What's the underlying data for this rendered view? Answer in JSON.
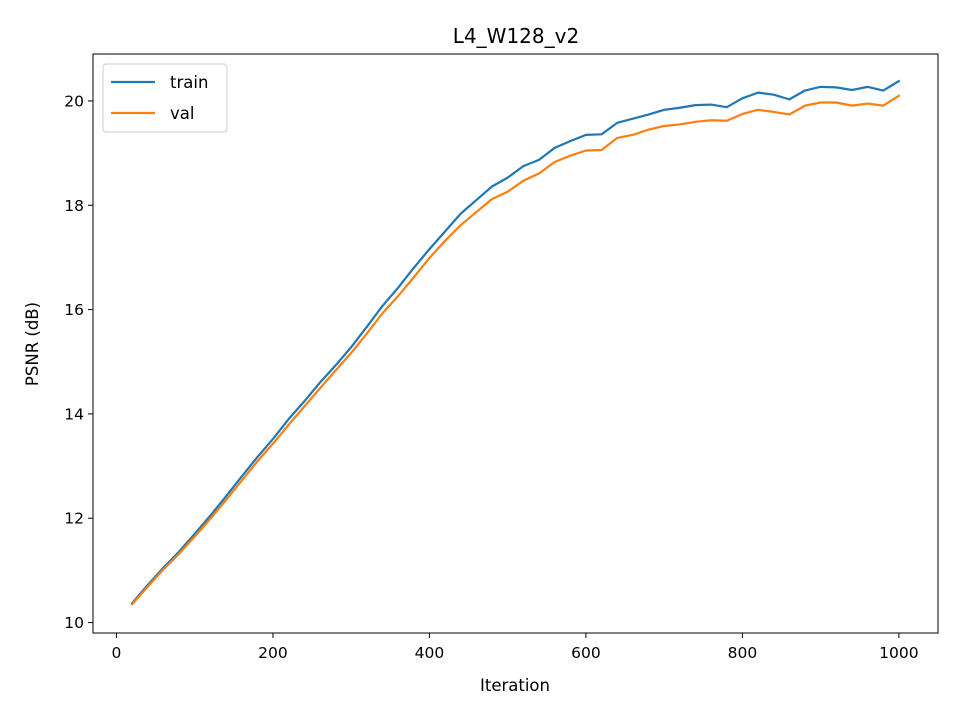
{
  "chart_data": {
    "type": "line",
    "title": "L4_W128_v2",
    "xlabel": "Iteration",
    "ylabel": "PSNR (dB)",
    "xlim": [
      -30,
      1050
    ],
    "ylim": [
      9.8,
      20.9
    ],
    "xticks": [
      0,
      200,
      400,
      600,
      800,
      1000
    ],
    "yticks": [
      10,
      12,
      14,
      16,
      18,
      20
    ],
    "grid": false,
    "legend_position": "top-left",
    "x": [
      20,
      40,
      60,
      80,
      100,
      120,
      140,
      160,
      180,
      200,
      220,
      240,
      260,
      280,
      300,
      320,
      340,
      360,
      380,
      400,
      420,
      440,
      460,
      480,
      500,
      520,
      540,
      560,
      580,
      600,
      620,
      640,
      660,
      680,
      700,
      720,
      740,
      760,
      780,
      800,
      820,
      840,
      860,
      880,
      900,
      920,
      940,
      960,
      980,
      1000
    ],
    "series": [
      {
        "name": "train",
        "color": "#1f77b4",
        "values": [
          10.37,
          10.72,
          11.05,
          11.36,
          11.7,
          12.05,
          12.42,
          12.8,
          13.17,
          13.52,
          13.9,
          14.24,
          14.6,
          14.93,
          15.28,
          15.67,
          16.07,
          16.42,
          16.8,
          17.16,
          17.5,
          17.84,
          18.1,
          18.36,
          18.53,
          18.75,
          18.87,
          19.1,
          19.23,
          19.35,
          19.36,
          19.58,
          19.66,
          19.74,
          19.83,
          19.87,
          19.92,
          19.93,
          19.88,
          20.05,
          20.16,
          20.12,
          20.03,
          20.2,
          20.27,
          20.26,
          20.21,
          20.27,
          20.2,
          20.38
        ]
      },
      {
        "name": "val",
        "color": "#ff7f0e",
        "values": [
          10.35,
          10.69,
          11.02,
          11.32,
          11.65,
          11.99,
          12.35,
          12.72,
          13.09,
          13.43,
          13.79,
          14.14,
          14.49,
          14.83,
          15.17,
          15.54,
          15.93,
          16.26,
          16.62,
          16.99,
          17.32,
          17.62,
          17.87,
          18.12,
          18.26,
          18.47,
          18.61,
          18.83,
          18.95,
          19.05,
          19.06,
          19.29,
          19.35,
          19.45,
          19.52,
          19.55,
          19.6,
          19.63,
          19.62,
          19.75,
          19.83,
          19.79,
          19.74,
          19.91,
          19.97,
          19.97,
          19.91,
          19.95,
          19.91,
          20.1
        ]
      }
    ]
  }
}
